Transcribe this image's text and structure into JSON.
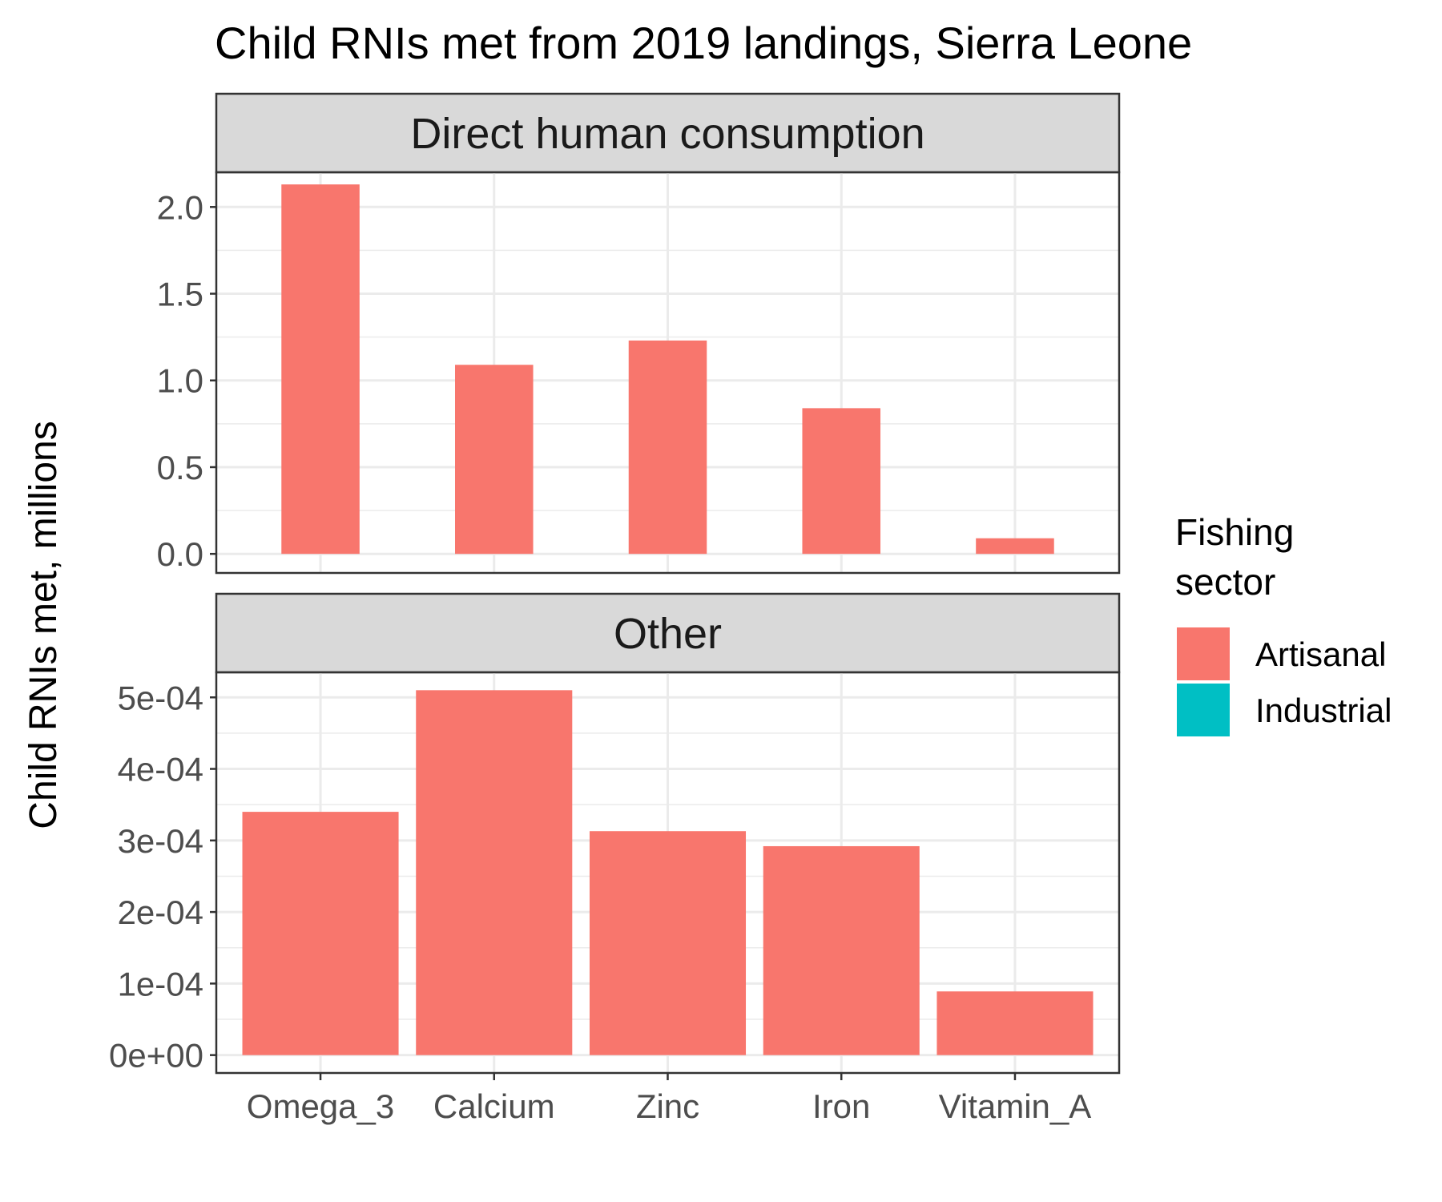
{
  "chart_data": {
    "type": "bar",
    "title": "Child RNIs met from 2019 landings, Sierra Leone",
    "ylabel": "Child RNIs met, millions",
    "xlabel": "",
    "categories": [
      "Omega_3",
      "Calcium",
      "Zinc",
      "Iron",
      "Vitamin_A"
    ],
    "legend": {
      "title_line1": "Fishing",
      "title_line2": "sector",
      "placement": "right",
      "entries": [
        {
          "name": "Artisanal",
          "color": "#F8766D"
        },
        {
          "name": "Industrial",
          "color": "#00BFC4"
        }
      ]
    },
    "facets": [
      {
        "label": "Direct human consumption",
        "ylim": [
          -0.11,
          2.2
        ],
        "y_ticks": [
          0.0,
          0.5,
          1.0,
          1.5,
          2.0
        ],
        "y_tick_labels": [
          "0.0",
          "0.5",
          "1.0",
          "1.5",
          "2.0"
        ],
        "bar_width_fraction": 0.45,
        "series": [
          {
            "name": "Artisanal",
            "values": [
              2.13,
              1.09,
              1.23,
              0.84,
              0.09
            ]
          },
          {
            "name": "Industrial",
            "values": [
              0,
              0,
              0,
              0,
              0
            ]
          }
        ]
      },
      {
        "label": "Other",
        "ylim": [
          -2.5e-05,
          0.000535
        ],
        "y_ticks": [
          0,
          0.0001,
          0.0002,
          0.0003,
          0.0004,
          0.0005
        ],
        "y_tick_labels": [
          "0e+00",
          "1e-04",
          "2e-04",
          "3e-04",
          "4e-04",
          "5e-04"
        ],
        "bar_width_fraction": 0.9,
        "series": [
          {
            "name": "Artisanal",
            "values": [
              0.00034,
              0.00051,
              0.000313,
              0.000292,
              8.9e-05
            ]
          },
          {
            "name": "Industrial",
            "values": [
              0,
              0,
              0,
              0,
              0
            ]
          }
        ]
      }
    ],
    "colors": {
      "strip_fill": "#D9D9D9",
      "grid": "#EBEBEB",
      "frame": "#333333",
      "tick_text": "#4D4D4D"
    }
  }
}
